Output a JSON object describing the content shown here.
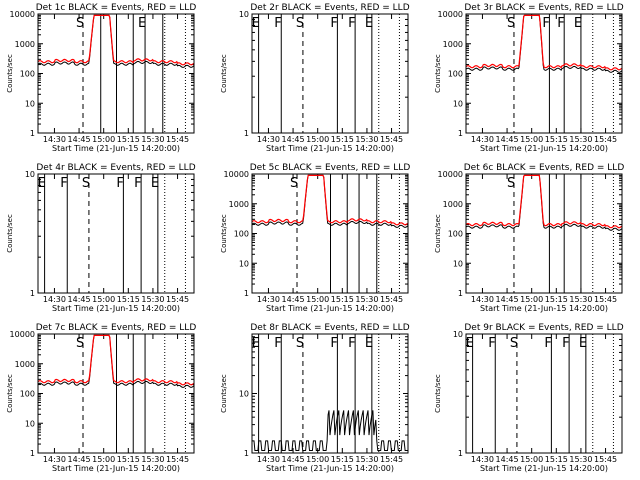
{
  "figure": {
    "xtick_labels": [
      "14:30",
      "14:45",
      "15:00",
      "15:15",
      "15:30",
      "15:45"
    ],
    "xlabel": "Start Time (21-Jun-15 14:20:00)",
    "ylabel": "Counts/sec"
  },
  "chart_data": [
    {
      "type": "line",
      "title": "Det 1c BLACK = Events, RED = LLD",
      "ylog": true,
      "ylim": [
        1,
        10000
      ],
      "yticks": [
        "1",
        "10",
        "100",
        "1000",
        "10000"
      ],
      "xlim": [
        14.333,
        15.917
      ],
      "xticks": [
        14.5,
        14.75,
        15.0,
        15.25,
        15.5,
        15.75
      ],
      "markers": [
        {
          "t": 14.79,
          "label": "S"
        },
        {
          "t": 14.97,
          "label": ""
        },
        {
          "t": 15.13,
          "label": ""
        },
        {
          "t": 15.3,
          "label": ""
        },
        {
          "t": 15.42,
          "label": "E"
        },
        {
          "t": 15.6,
          "label": ""
        }
      ],
      "baseline": 250,
      "peak": 9000,
      "flare": [
        14.9,
        15.06
      ],
      "series": [
        {
          "name": "BLACK",
          "color": "#000000"
        },
        {
          "name": "RED",
          "color": "#ff0000"
        }
      ]
    },
    {
      "type": "line",
      "title": "Det 2r BLACK = Events, RED = LLD",
      "ylog": true,
      "ylim": [
        1,
        10
      ],
      "yticks": [
        "1",
        "10"
      ],
      "xlim": [
        14.333,
        15.917
      ],
      "xticks": [
        14.5,
        14.75,
        15.0,
        15.25,
        15.5,
        15.75
      ],
      "markers": [
        {
          "t": 14.4,
          "label": "E"
        },
        {
          "t": 14.63,
          "label": "F"
        },
        {
          "t": 14.85,
          "label": "S"
        },
        {
          "t": 15.2,
          "label": "F"
        },
        {
          "t": 15.38,
          "label": "F"
        },
        {
          "t": 15.55,
          "label": "E"
        }
      ],
      "baseline": null,
      "peak": null,
      "flare": null,
      "series": []
    },
    {
      "type": "line",
      "title": "Det 3r BLACK = Events, RED = LLD",
      "ylog": true,
      "ylim": [
        1,
        10000
      ],
      "yticks": [
        "1",
        "10",
        "100",
        "1000",
        "10000"
      ],
      "xlim": [
        14.333,
        15.917
      ],
      "xticks": [
        14.5,
        14.75,
        15.0,
        15.25,
        15.5,
        15.75
      ],
      "markers": [
        {
          "t": 14.82,
          "label": "S"
        },
        {
          "t": 15.18,
          "label": "F"
        },
        {
          "t": 15.33,
          "label": "F"
        },
        {
          "t": 15.5,
          "label": "E"
        }
      ],
      "baseline": 170,
      "peak": 9000,
      "flare": [
        14.92,
        15.08
      ],
      "series": [
        {
          "name": "BLACK",
          "color": "#000000"
        },
        {
          "name": "RED",
          "color": "#ff0000"
        }
      ]
    },
    {
      "type": "line",
      "title": "Det 4r BLACK = Events, RED = LLD",
      "ylog": true,
      "ylim": [
        1,
        10
      ],
      "yticks": [
        "1",
        "10"
      ],
      "xlim": [
        14.333,
        15.917
      ],
      "xticks": [
        14.5,
        14.75,
        15.0,
        15.25,
        15.5,
        15.75
      ],
      "markers": [
        {
          "t": 14.4,
          "label": "E"
        },
        {
          "t": 14.63,
          "label": "F"
        },
        {
          "t": 14.85,
          "label": "S"
        },
        {
          "t": 15.2,
          "label": "F"
        },
        {
          "t": 15.38,
          "label": "F"
        },
        {
          "t": 15.55,
          "label": "E"
        }
      ],
      "baseline": null,
      "peak": null,
      "flare": null,
      "series": []
    },
    {
      "type": "line",
      "title": "Det 5c BLACK = Events, RED = LLD",
      "ylog": true,
      "ylim": [
        1,
        10000
      ],
      "yticks": [
        "1",
        "10",
        "100",
        "1000",
        "10000"
      ],
      "xlim": [
        14.333,
        15.917
      ],
      "xticks": [
        14.5,
        14.75,
        15.0,
        15.25,
        15.5,
        15.75
      ],
      "markers": [
        {
          "t": 14.79,
          "label": "S"
        },
        {
          "t": 15.13,
          "label": ""
        },
        {
          "t": 15.3,
          "label": ""
        },
        {
          "t": 15.42,
          "label": ""
        },
        {
          "t": 15.6,
          "label": ""
        }
      ],
      "baseline": 250,
      "peak": 9000,
      "flare": [
        14.9,
        15.06
      ],
      "series": [
        {
          "name": "BLACK",
          "color": "#000000"
        },
        {
          "name": "RED",
          "color": "#ff0000"
        }
      ]
    },
    {
      "type": "line",
      "title": "Det 6c BLACK = Events, RED = LLD",
      "ylog": true,
      "ylim": [
        1,
        10000
      ],
      "yticks": [
        "1",
        "10",
        "100",
        "1000",
        "10000"
      ],
      "xlim": [
        14.333,
        15.917
      ],
      "xticks": [
        14.5,
        14.75,
        15.0,
        15.25,
        15.5,
        15.75
      ],
      "markers": [
        {
          "t": 14.82,
          "label": "S"
        },
        {
          "t": 15.18,
          "label": ""
        },
        {
          "t": 15.33,
          "label": ""
        },
        {
          "t": 15.5,
          "label": ""
        }
      ],
      "baseline": 200,
      "peak": 9000,
      "flare": [
        14.92,
        15.08
      ],
      "series": [
        {
          "name": "BLACK",
          "color": "#000000"
        },
        {
          "name": "RED",
          "color": "#ff0000"
        }
      ]
    },
    {
      "type": "line",
      "title": "Det 7c BLACK = Events, RED = LLD",
      "ylog": true,
      "ylim": [
        1,
        10000
      ],
      "yticks": [
        "1",
        "10",
        "100",
        "1000",
        "10000"
      ],
      "xlim": [
        14.333,
        15.917
      ],
      "xticks": [
        14.5,
        14.75,
        15.0,
        15.25,
        15.5,
        15.75
      ],
      "markers": [
        {
          "t": 14.79,
          "label": "S"
        },
        {
          "t": 15.13,
          "label": ""
        },
        {
          "t": 15.3,
          "label": ""
        },
        {
          "t": 15.42,
          "label": ""
        }
      ],
      "baseline": 250,
      "peak": 9000,
      "flare": [
        14.9,
        15.06
      ],
      "series": [
        {
          "name": "BLACK",
          "color": "#000000"
        },
        {
          "name": "RED",
          "color": "#ff0000"
        }
      ]
    },
    {
      "type": "line",
      "title": "Det 8r BLACK = Events, RED = LLD",
      "ylog": true,
      "ylim": [
        1,
        100
      ],
      "yticks": [
        "1",
        "10"
      ],
      "xlim": [
        14.333,
        15.917
      ],
      "xticks": [
        14.5,
        14.75,
        15.0,
        15.25,
        15.5,
        15.75
      ],
      "markers": [
        {
          "t": 14.4,
          "label": "E"
        },
        {
          "t": 14.63,
          "label": "F"
        },
        {
          "t": 14.85,
          "label": "S"
        },
        {
          "t": 15.2,
          "label": "F"
        },
        {
          "t": 15.38,
          "label": "F"
        },
        {
          "t": 15.55,
          "label": "E"
        }
      ],
      "baseline": null,
      "peak": null,
      "flare": null,
      "noise": true,
      "series": [
        {
          "name": "BLACK",
          "color": "#000000"
        }
      ]
    },
    {
      "type": "line",
      "title": "Det 9r BLACK = Events, RED = LLD",
      "ylog": true,
      "ylim": [
        1,
        10
      ],
      "yticks": [
        "1",
        "10"
      ],
      "xlim": [
        14.333,
        15.917
      ],
      "xticks": [
        14.5,
        14.75,
        15.0,
        15.25,
        15.5,
        15.75
      ],
      "markers": [
        {
          "t": 14.4,
          "label": "E"
        },
        {
          "t": 14.63,
          "label": "F"
        },
        {
          "t": 14.85,
          "label": "S"
        },
        {
          "t": 15.2,
          "label": "F"
        },
        {
          "t": 15.38,
          "label": "F"
        },
        {
          "t": 15.55,
          "label": "E"
        }
      ],
      "baseline": null,
      "peak": null,
      "flare": null,
      "series": []
    }
  ]
}
